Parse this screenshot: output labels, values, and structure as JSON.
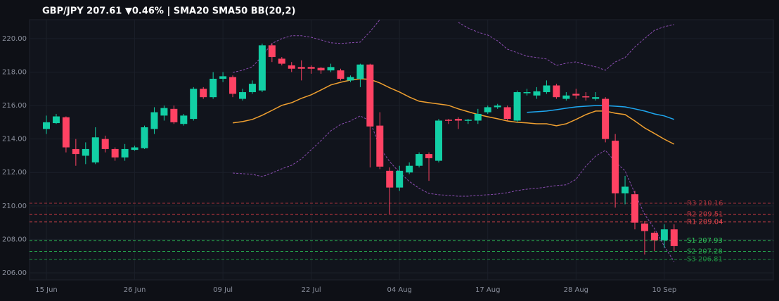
{
  "chart_data": {
    "type": "candlestick",
    "title": "GBP/JPY  207.61  ▼0.46%  |  SMA20  SMA50  BB(20,2)",
    "categories": [
      "15 Jun",
      null,
      null,
      null,
      null,
      null,
      null,
      null,
      null,
      "26 Jun",
      null,
      null,
      null,
      null,
      null,
      null,
      null,
      null,
      "09 Jul",
      null,
      null,
      null,
      null,
      null,
      null,
      null,
      null,
      "22 Jul",
      null,
      null,
      null,
      null,
      null,
      null,
      null,
      null,
      "04 Aug",
      null,
      null,
      null,
      null,
      null,
      null,
      null,
      null,
      "17 Aug",
      null,
      null,
      null,
      null,
      null,
      null,
      null,
      null,
      "28 Aug",
      null,
      null,
      null,
      null,
      null,
      null,
      null,
      null,
      "10 Sep",
      null
    ],
    "open": [
      214.6,
      214.95,
      215.3,
      213.4,
      213.0,
      212.6,
      214.0,
      213.4,
      212.9,
      213.35,
      213.45,
      214.6,
      215.4,
      215.8,
      214.9,
      215.2,
      217.0,
      216.5,
      217.6,
      217.7,
      216.4,
      216.8,
      216.9,
      219.6,
      218.8,
      218.4,
      218.3,
      218.3,
      218.25,
      218.1,
      218.1,
      217.5,
      217.6,
      218.45,
      214.8,
      212.1,
      211.1,
      212.0,
      212.4,
      213.1,
      212.7,
      215.15,
      215.2,
      215.1,
      215.1,
      215.6,
      215.9,
      215.9,
      215.1,
      216.75,
      216.6,
      216.8,
      217.2,
      216.4,
      216.7,
      216.55,
      216.4,
      216.4,
      213.9,
      210.75,
      210.7,
      208.95,
      208.4,
      207.95,
      208.6
    ],
    "high": [
      215.4,
      215.5,
      215.35,
      214.0,
      213.8,
      214.7,
      214.2,
      213.5,
      213.7,
      213.6,
      214.8,
      215.9,
      216.0,
      216.0,
      215.5,
      217.1,
      217.1,
      218.0,
      218.0,
      217.8,
      217.0,
      217.5,
      219.7,
      219.7,
      218.9,
      218.6,
      218.7,
      218.4,
      218.3,
      218.5,
      218.2,
      217.8,
      218.5,
      218.5,
      215.6,
      212.3,
      212.4,
      212.6,
      213.2,
      213.2,
      215.2,
      215.2,
      215.3,
      215.2,
      215.8,
      216.0,
      216.1,
      216.0,
      216.9,
      217.0,
      217.1,
      217.5,
      217.3,
      216.8,
      217.0,
      216.8,
      216.8,
      216.5,
      214.3,
      211.8,
      210.9,
      209.1,
      208.5,
      208.9,
      208.9
    ],
    "low": [
      214.3,
      214.9,
      213.2,
      212.4,
      212.5,
      212.5,
      213.2,
      212.7,
      212.7,
      213.3,
      213.4,
      214.3,
      215.1,
      214.9,
      214.8,
      215.1,
      216.4,
      216.4,
      217.4,
      216.5,
      216.3,
      216.7,
      216.8,
      218.6,
      218.4,
      218.0,
      217.5,
      217.9,
      217.9,
      218.0,
      217.5,
      217.4,
      217.1,
      212.3,
      212.2,
      209.5,
      210.9,
      211.9,
      212.3,
      211.5,
      212.6,
      214.9,
      214.6,
      214.9,
      214.9,
      215.5,
      215.8,
      215.1,
      215.0,
      216.6,
      216.4,
      216.7,
      216.4,
      216.3,
      216.4,
      216.3,
      216.3,
      213.8,
      209.9,
      210.1,
      208.6,
      207.1,
      207.3,
      207.5,
      207.3
    ],
    "close": [
      215.0,
      215.35,
      213.5,
      213.1,
      213.4,
      214.1,
      213.4,
      212.9,
      213.4,
      213.5,
      214.7,
      215.6,
      215.85,
      215.0,
      215.4,
      217.0,
      216.5,
      217.6,
      217.75,
      216.7,
      216.8,
      217.3,
      219.6,
      218.9,
      218.5,
      218.2,
      218.2,
      218.2,
      218.1,
      218.3,
      217.6,
      217.7,
      218.45,
      214.75,
      212.35,
      211.1,
      212.1,
      212.4,
      213.1,
      212.85,
      215.1,
      215.1,
      215.1,
      215.15,
      215.5,
      215.9,
      216.0,
      215.2,
      216.8,
      216.8,
      216.85,
      217.2,
      216.5,
      216.6,
      216.6,
      216.5,
      216.5,
      214.0,
      210.75,
      211.15,
      209.0,
      208.5,
      207.95,
      208.6,
      207.6
    ],
    "up_color": "#12cfa5",
    "down_color": "#ff4263",
    "series": [
      {
        "name": "SMA20",
        "color": "#f0a030",
        "dashed": false,
        "values": [
          null,
          null,
          null,
          null,
          null,
          null,
          null,
          null,
          null,
          null,
          null,
          null,
          null,
          null,
          null,
          null,
          null,
          null,
          null,
          214.96,
          215.04,
          215.17,
          215.42,
          215.71,
          216.01,
          216.17,
          216.43,
          216.64,
          216.93,
          217.23,
          217.39,
          217.52,
          217.6,
          217.56,
          217.35,
          217.06,
          216.81,
          216.51,
          216.26,
          216.17,
          216.09,
          216.01,
          215.8,
          215.63,
          215.46,
          215.33,
          215.21,
          215.08,
          215.0,
          214.96,
          214.91,
          214.91,
          214.79,
          214.91,
          215.17,
          215.46,
          215.67,
          215.67,
          215.54,
          215.46,
          215.08,
          214.66,
          214.33,
          213.99,
          213.69
        ]
      },
      {
        "name": "SMA50",
        "color": "#1ea7f0",
        "dashed": false,
        "values": [
          null,
          null,
          null,
          null,
          null,
          null,
          null,
          null,
          null,
          null,
          null,
          null,
          null,
          null,
          null,
          null,
          null,
          null,
          null,
          null,
          null,
          null,
          null,
          null,
          null,
          null,
          null,
          null,
          null,
          null,
          null,
          null,
          null,
          null,
          null,
          null,
          null,
          null,
          null,
          null,
          null,
          null,
          null,
          null,
          null,
          null,
          null,
          null,
          null,
          215.59,
          215.63,
          215.67,
          215.75,
          215.84,
          215.92,
          215.96,
          216.0,
          216.0,
          215.96,
          215.92,
          215.8,
          215.67,
          215.5,
          215.38,
          215.17
        ]
      },
      {
        "name": "BB(20,2)",
        "color": "#8a4cb0",
        "dashed": true,
        "values": [
          null,
          null,
          null,
          null,
          null,
          null,
          null,
          null,
          null,
          null,
          null,
          null,
          null,
          null,
          null,
          null,
          null,
          null,
          null,
          217.98,
          218.11,
          218.32,
          218.95,
          219.71,
          220.0,
          220.17,
          220.17,
          220.08,
          219.92,
          219.75,
          219.71,
          219.75,
          219.79,
          220.42,
          221.13,
          null,
          null,
          null,
          null,
          null,
          null,
          null,
          220.97,
          220.63,
          220.38,
          220.21,
          219.87,
          219.37,
          219.16,
          218.95,
          218.87,
          218.78,
          218.4,
          218.53,
          218.61,
          218.44,
          218.32,
          218.11,
          218.61,
          218.87,
          219.5,
          220.0,
          220.5,
          220.71,
          220.84
        ]
      },
      {
        "name": "BB(20,2)",
        "color": "#8a4cb0",
        "dashed": true,
        "values": [
          null,
          null,
          null,
          null,
          null,
          null,
          null,
          null,
          null,
          null,
          null,
          null,
          null,
          null,
          null,
          null,
          null,
          null,
          null,
          211.97,
          211.93,
          211.89,
          211.76,
          211.97,
          212.22,
          212.43,
          212.81,
          213.36,
          213.9,
          214.49,
          214.87,
          215.08,
          215.38,
          215.08,
          213.48,
          212.64,
          212.01,
          211.47,
          211.05,
          210.75,
          210.67,
          210.63,
          210.58,
          210.58,
          210.63,
          210.67,
          210.71,
          210.79,
          210.92,
          211.0,
          211.05,
          211.13,
          211.22,
          211.26,
          211.59,
          212.39,
          212.98,
          213.32,
          212.64,
          212.1,
          210.75,
          209.49,
          208.65,
          207.6,
          206.67
        ]
      }
    ],
    "levels": [
      {
        "name": "R3",
        "value": 210.16,
        "color": "#a8323c"
      },
      {
        "name": "R2",
        "value": 209.51,
        "color": "#d23a44"
      },
      {
        "name": "R1",
        "value": 209.04,
        "color": "#e8464e"
      },
      {
        "name": "S1",
        "value": 207.93,
        "color": "#2ec45a"
      },
      {
        "name": "S2",
        "value": 207.28,
        "color": "#25a24c"
      },
      {
        "name": "S3",
        "value": 206.81,
        "color": "#1d8a40"
      }
    ],
    "ylim": [
      205.58,
      221.13
    ],
    "yticks": [
      {
        "value": 206,
        "label": "206.00"
      },
      {
        "value": 208,
        "label": "208.00"
      },
      {
        "value": 210,
        "label": "210.00"
      },
      {
        "value": 212,
        "label": "212.00"
      },
      {
        "value": 214,
        "label": "214.00"
      },
      {
        "value": 216,
        "label": "216.00"
      },
      {
        "value": 218,
        "label": "218.00"
      },
      {
        "value": 220,
        "label": "220.00"
      }
    ],
    "grid": true
  }
}
